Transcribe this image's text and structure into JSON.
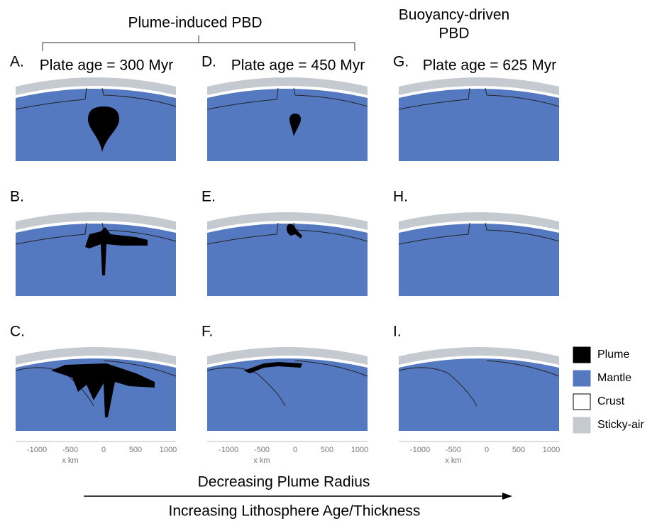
{
  "header": {
    "group_1": "Plume-induced PBD",
    "group_2_line_1": "Buoyancy-driven",
    "group_2_line_2": "PBD"
  },
  "columns": [
    {
      "plate_age": "Plate age = 300 Myr"
    },
    {
      "plate_age": "Plate age = 450 Myr"
    },
    {
      "plate_age": "Plate age = 625 Myr"
    }
  ],
  "panels": [
    {
      "label": "A."
    },
    {
      "label": "B."
    },
    {
      "label": "C."
    },
    {
      "label": "D."
    },
    {
      "label": "E."
    },
    {
      "label": "F."
    },
    {
      "label": "G."
    },
    {
      "label": "H."
    },
    {
      "label": "I."
    }
  ],
  "axis": {
    "ticks": [
      "-1000",
      "-500",
      "0",
      "500",
      "1000"
    ],
    "label": "x km"
  },
  "legend": [
    {
      "label": "Plume"
    },
    {
      "label": "Mantle"
    },
    {
      "label": "Crust"
    },
    {
      "label": "Sticky-air"
    }
  ],
  "footer": {
    "line_1": "Decreasing Plume Radius",
    "line_2": "Increasing Lithosphere Age/Thickness"
  }
}
